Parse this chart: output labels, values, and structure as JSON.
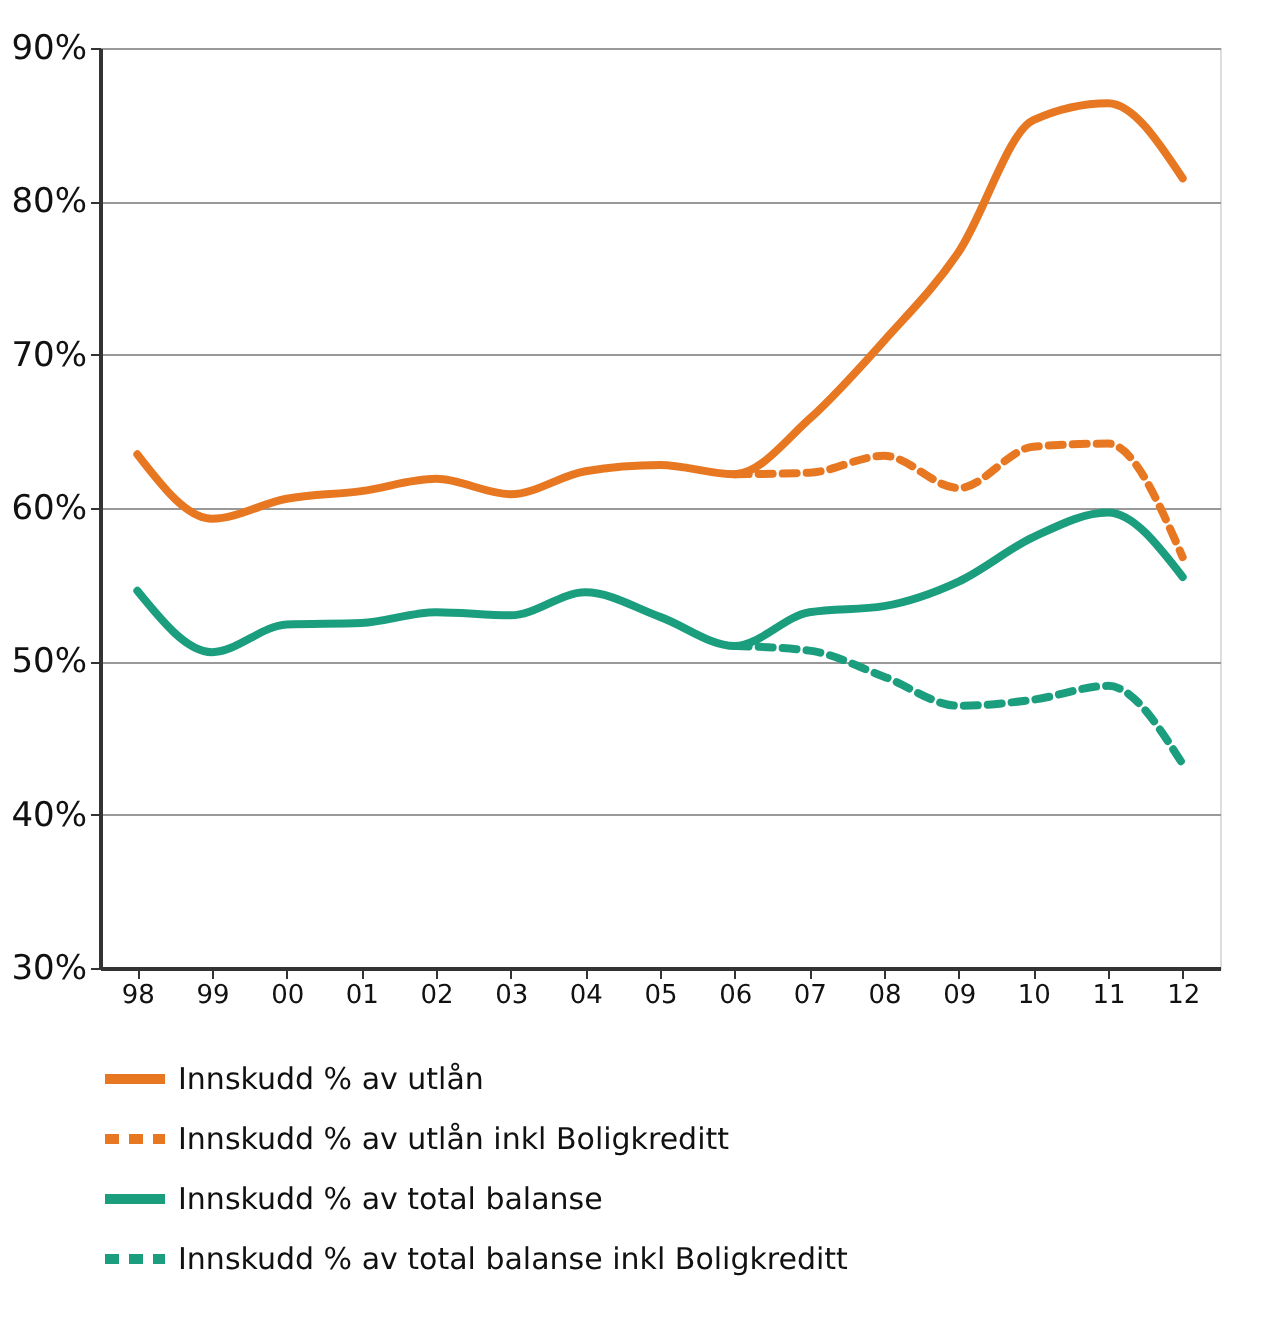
{
  "chart_data": {
    "type": "line",
    "categories": [
      "98",
      "99",
      "00",
      "01",
      "02",
      "03",
      "04",
      "05",
      "06",
      "07",
      "08",
      "09",
      "10",
      "11",
      "12"
    ],
    "ylim": [
      30,
      90
    ],
    "yticks": [
      {
        "value": 30,
        "label": "30%"
      },
      {
        "value": 40,
        "label": "40%"
      },
      {
        "value": 50,
        "label": "50%"
      },
      {
        "value": 60,
        "label": "60%"
      },
      {
        "value": 70,
        "label": "70%"
      },
      {
        "value": 80,
        "label": "80%"
      },
      {
        "value": 90,
        "label": "90%"
      }
    ],
    "grid": "y",
    "legend": "bottom",
    "marker": "none",
    "series": [
      {
        "name": "Innskudd % av utlån",
        "color": "#e87722",
        "line_style": "solid",
        "values": [
          63.5,
          59.3,
          60.6,
          61.1,
          61.9,
          60.9,
          62.4,
          62.8,
          62.2,
          65.8,
          70.9,
          76.7,
          85.3,
          86.4,
          81.5
        ]
      },
      {
        "name": "Innskudd % av utlån inkl Boligkreditt",
        "color": "#e87722",
        "line_style": "dashed",
        "values": [
          null,
          null,
          null,
          null,
          null,
          null,
          null,
          null,
          62.2,
          62.3,
          63.4,
          61.3,
          64.0,
          64.2,
          56.8
        ]
      },
      {
        "name": "Innskudd % av total balanse",
        "color": "#1a9e7e",
        "line_style": "solid",
        "values": [
          54.6,
          50.6,
          52.4,
          52.5,
          53.2,
          53.0,
          54.5,
          52.9,
          51.0,
          53.2,
          53.6,
          55.2,
          58.1,
          59.7,
          55.5
        ]
      },
      {
        "name": "Innskudd % av total balanse inkl Boligkreditt",
        "color": "#1a9e7e",
        "line_style": "dashed",
        "values": [
          null,
          null,
          null,
          null,
          null,
          null,
          null,
          null,
          51.0,
          50.7,
          49.0,
          47.1,
          47.5,
          48.4,
          43.3
        ]
      }
    ]
  }
}
